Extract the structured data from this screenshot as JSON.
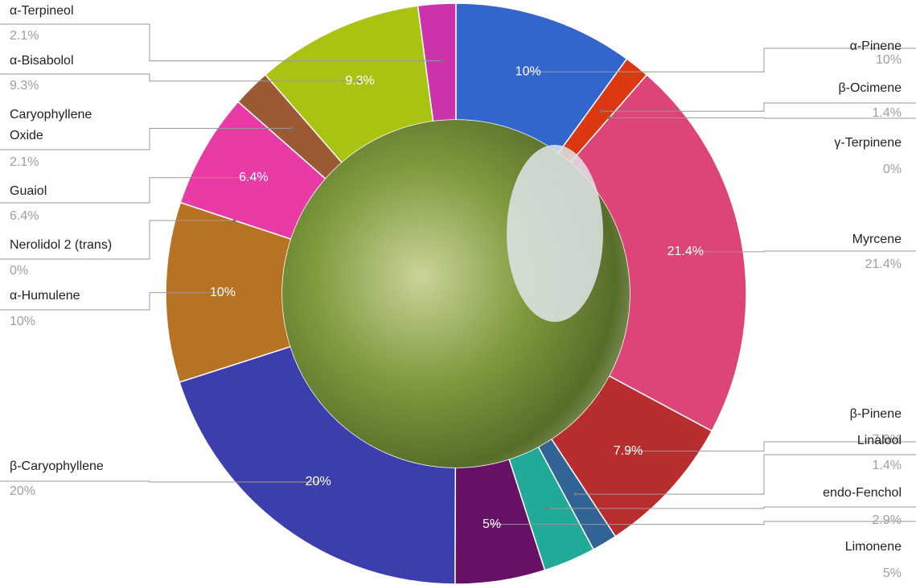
{
  "chart_data": {
    "type": "donut",
    "categories": [
      "α-Pinene",
      "β-Ocimene",
      "γ-Terpinene",
      "Myrcene",
      "β-Pinene",
      "Linalool",
      "endo-Fenchol",
      "Limonene",
      "β-Caryophyllene",
      "α-Humulene",
      "Nerolidol 2 (trans)",
      "Guaiol",
      "Caryophyllene Oxide",
      "α-Bisabolol",
      "α-Terpineol"
    ],
    "values": [
      10,
      1.4,
      0,
      21.4,
      7.9,
      1.4,
      2.9,
      5,
      20,
      10,
      0,
      6.4,
      2.1,
      9.3,
      2.1
    ],
    "value_labels": [
      "10%",
      "1.4%",
      "0%",
      "21.4%",
      "7.9%",
      "1.4%",
      "2.9%",
      "5%",
      "20%",
      "10%",
      "0%",
      "6.4%",
      "2.1%",
      "9.3%",
      "2.1%"
    ],
    "colors": [
      "#3366cc",
      "#dc3912",
      "#ff9900",
      "#dd4477",
      "#b82e2e",
      "#316395",
      "#22aa99",
      "#661166",
      "#3b3eac",
      "#b77322",
      "#0099c6",
      "#e83ba6",
      "#9c5935",
      "#aac212",
      "#cc33aa"
    ]
  }
}
